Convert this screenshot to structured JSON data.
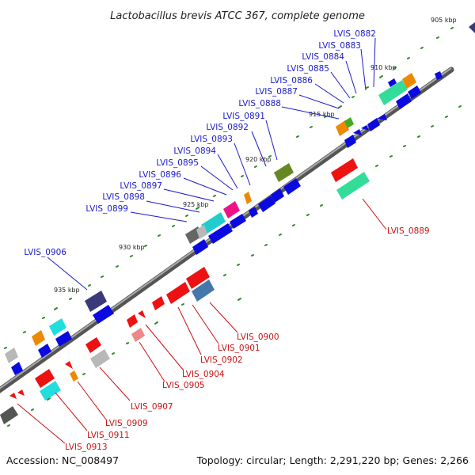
{
  "title": "Lactobacillus brevis ATCC 367, complete genome",
  "footer": {
    "accession": "Accession: NC_008497",
    "topology": "Topology: circular; Length: 2,291,220 bp; Genes: 2,266"
  },
  "colors": {
    "label_upper": "#1a1acc",
    "label_lower": "#cc1111"
  },
  "ticks": [
    "905 kbp",
    "910 kbp",
    "915 kbp",
    "920 kbp",
    "925 kbp",
    "930 kbp",
    "935 kbp"
  ],
  "labels_upper": [
    "LVIS_0882",
    "LVIS_0883",
    "LVIS_0884",
    "LVIS_0885",
    "LVIS_0886",
    "LVIS_0887",
    "LVIS_0888",
    "LVIS_0891",
    "LVIS_0892",
    "LVIS_0893",
    "LVIS_0894",
    "LVIS_0895",
    "LVIS_0896",
    "LVIS_0897",
    "LVIS_0898",
    "LVIS_0899",
    "LVIS_0906"
  ],
  "labels_lower": [
    "LVIS_0889",
    "LVIS_0900",
    "LVIS_0901",
    "LVIS_0902",
    "LVIS_0904",
    "LVIS_0905",
    "LVIS_0907",
    "LVIS_0909",
    "LVIS_0911",
    "LVIS_0913"
  ]
}
